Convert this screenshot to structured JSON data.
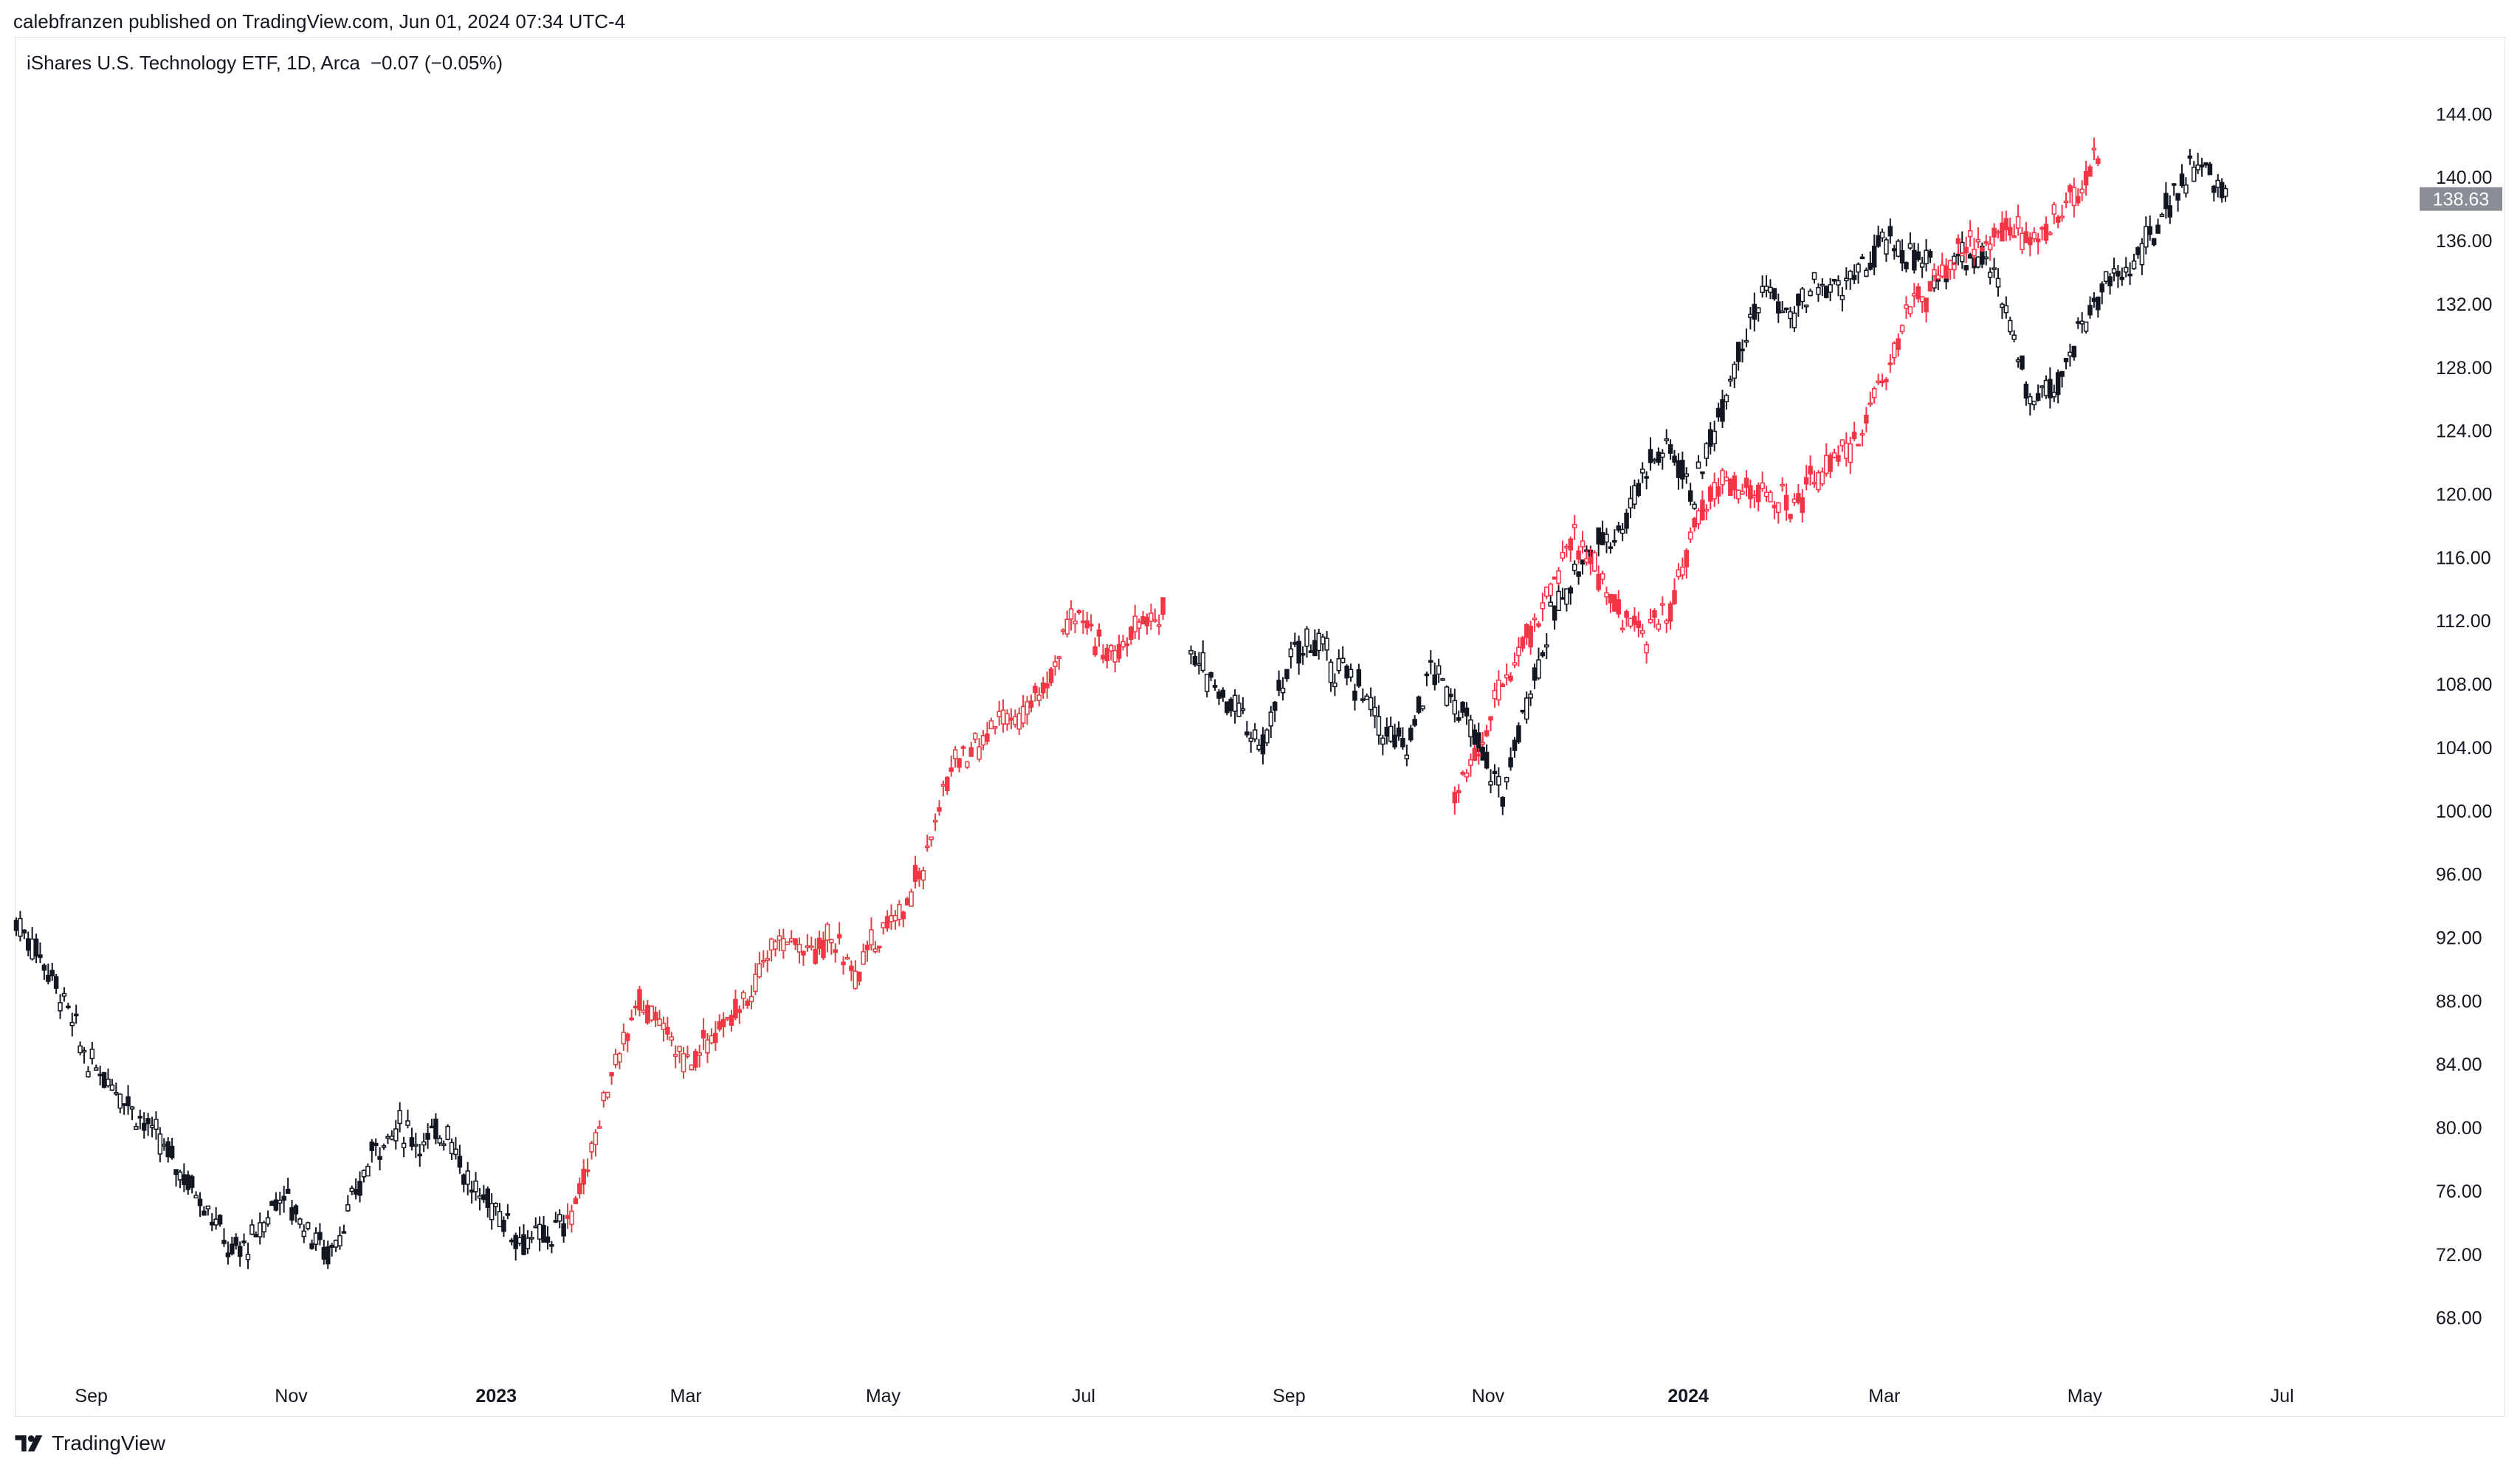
{
  "publisher_line": "calebfranzen published on TradingView.com, Jun 01, 2024 07:34 UTC-4",
  "legend": {
    "title": "iShares U.S. Technology ETF, 1D, Arca",
    "change": "−0.07 (−0.05%)"
  },
  "brand": {
    "name": "TradingView"
  },
  "colors": {
    "primary_series": "#131722",
    "overlay_series": "#f23645",
    "price_badge": "#8a8d96",
    "grid_border": "#e0e3eb"
  },
  "chart_data": {
    "type": "candlestick-overlay",
    "y_ticks": [
      "144.00",
      "140.00",
      "136.00",
      "132.00",
      "128.00",
      "124.00",
      "120.00",
      "116.00",
      "112.00",
      "108.00",
      "104.00",
      "100.00",
      "96.00",
      "92.00",
      "88.00",
      "84.00",
      "80.00",
      "76.00",
      "72.00",
      "68.00"
    ],
    "ylim": [
      65,
      147
    ],
    "x_ticks": [
      {
        "label": "Sep",
        "t": 0.0313
      },
      {
        "label": "Nov",
        "t": 0.1147
      },
      {
        "label": "2023",
        "t": 0.2002
      },
      {
        "label": "Mar",
        "t": 0.2793
      },
      {
        "label": "May",
        "t": 0.3616
      },
      {
        "label": "Jul",
        "t": 0.4452
      },
      {
        "label": "Sep",
        "t": 0.5309
      },
      {
        "label": "Nov",
        "t": 0.6139
      },
      {
        "label": "2024",
        "t": 0.6974
      },
      {
        "label": "Mar",
        "t": 0.7792
      },
      {
        "label": "May",
        "t": 0.8628
      },
      {
        "label": "Jul",
        "t": 0.9451
      }
    ],
    "last_price": "138.63",
    "last_price_value": 138.63,
    "series": [
      {
        "color": "#131722",
        "points": [
          [
            0.0,
            93
          ],
          [
            0.01,
            91
          ],
          [
            0.02,
            88
          ],
          [
            0.03,
            84
          ],
          [
            0.04,
            83
          ],
          [
            0.05,
            81
          ],
          [
            0.06,
            79
          ],
          [
            0.07,
            77
          ],
          [
            0.08,
            75
          ],
          [
            0.09,
            72
          ],
          [
            0.1,
            73
          ],
          [
            0.11,
            76
          ],
          [
            0.12,
            74
          ],
          [
            0.13,
            72
          ],
          [
            0.14,
            75
          ],
          [
            0.15,
            79
          ],
          [
            0.16,
            80
          ],
          [
            0.17,
            79
          ],
          [
            0.18,
            80
          ],
          [
            0.19,
            76
          ],
          [
            0.2,
            75
          ],
          [
            0.21,
            73
          ],
          [
            0.22,
            73
          ],
          [
            0.23,
            74
          ],
          [
            0.49,
            110
          ],
          [
            0.5,
            108
          ],
          [
            0.51,
            106
          ],
          [
            0.52,
            104
          ],
          [
            0.53,
            109
          ],
          [
            0.54,
            111
          ],
          [
            0.55,
            109
          ],
          [
            0.56,
            108
          ],
          [
            0.57,
            105
          ],
          [
            0.58,
            104
          ],
          [
            0.59,
            109
          ],
          [
            0.6,
            107
          ],
          [
            0.61,
            104
          ],
          [
            0.62,
            101
          ],
          [
            0.63,
            107
          ],
          [
            0.64,
            112
          ],
          [
            0.65,
            115
          ],
          [
            0.66,
            117
          ],
          [
            0.67,
            118
          ],
          [
            0.68,
            122
          ],
          [
            0.69,
            123
          ],
          [
            0.7,
            120
          ],
          [
            0.71,
            125
          ],
          [
            0.72,
            130
          ],
          [
            0.73,
            133
          ],
          [
            0.74,
            131
          ],
          [
            0.75,
            133
          ],
          [
            0.76,
            133
          ],
          [
            0.77,
            134
          ],
          [
            0.78,
            136
          ],
          [
            0.79,
            135
          ],
          [
            0.8,
            134
          ],
          [
            0.81,
            135
          ],
          [
            0.82,
            135
          ],
          [
            0.83,
            132
          ],
          [
            0.84,
            126
          ],
          [
            0.85,
            127
          ],
          [
            0.86,
            130
          ],
          [
            0.87,
            133
          ],
          [
            0.88,
            134
          ],
          [
            0.89,
            136
          ],
          [
            0.9,
            139
          ],
          [
            0.91,
            141
          ],
          [
            0.92,
            139
          ],
          [
            0.923,
            138.63
          ]
        ]
      },
      {
        "color": "#f23645",
        "points": [
          [
            0.23,
            74
          ],
          [
            0.24,
            78
          ],
          [
            0.25,
            84
          ],
          [
            0.26,
            88
          ],
          [
            0.27,
            86
          ],
          [
            0.28,
            84
          ],
          [
            0.29,
            86
          ],
          [
            0.3,
            87
          ],
          [
            0.31,
            90
          ],
          [
            0.32,
            92
          ],
          [
            0.33,
            91
          ],
          [
            0.34,
            92
          ],
          [
            0.35,
            90
          ],
          [
            0.36,
            92
          ],
          [
            0.37,
            94
          ],
          [
            0.38,
            97
          ],
          [
            0.39,
            103
          ],
          [
            0.4,
            104
          ],
          [
            0.41,
            106
          ],
          [
            0.42,
            106
          ],
          [
            0.43,
            108
          ],
          [
            0.44,
            112
          ],
          [
            0.45,
            111
          ],
          [
            0.46,
            110
          ],
          [
            0.47,
            112
          ],
          [
            0.48,
            113
          ],
          [
            0.6,
            101
          ],
          [
            0.61,
            104
          ],
          [
            0.62,
            108
          ],
          [
            0.63,
            111
          ],
          [
            0.64,
            114
          ],
          [
            0.65,
            117
          ],
          [
            0.66,
            115
          ],
          [
            0.67,
            112
          ],
          [
            0.68,
            111
          ],
          [
            0.69,
            113
          ],
          [
            0.7,
            118
          ],
          [
            0.71,
            121
          ],
          [
            0.72,
            120
          ],
          [
            0.73,
            120
          ],
          [
            0.74,
            119
          ],
          [
            0.75,
            121
          ],
          [
            0.76,
            122
          ],
          [
            0.77,
            124
          ],
          [
            0.78,
            128
          ],
          [
            0.79,
            132
          ],
          [
            0.8,
            133
          ],
          [
            0.81,
            135
          ],
          [
            0.82,
            136
          ],
          [
            0.83,
            137
          ],
          [
            0.84,
            136
          ],
          [
            0.85,
            137
          ],
          [
            0.86,
            139
          ],
          [
            0.87,
            142
          ]
        ]
      }
    ]
  }
}
